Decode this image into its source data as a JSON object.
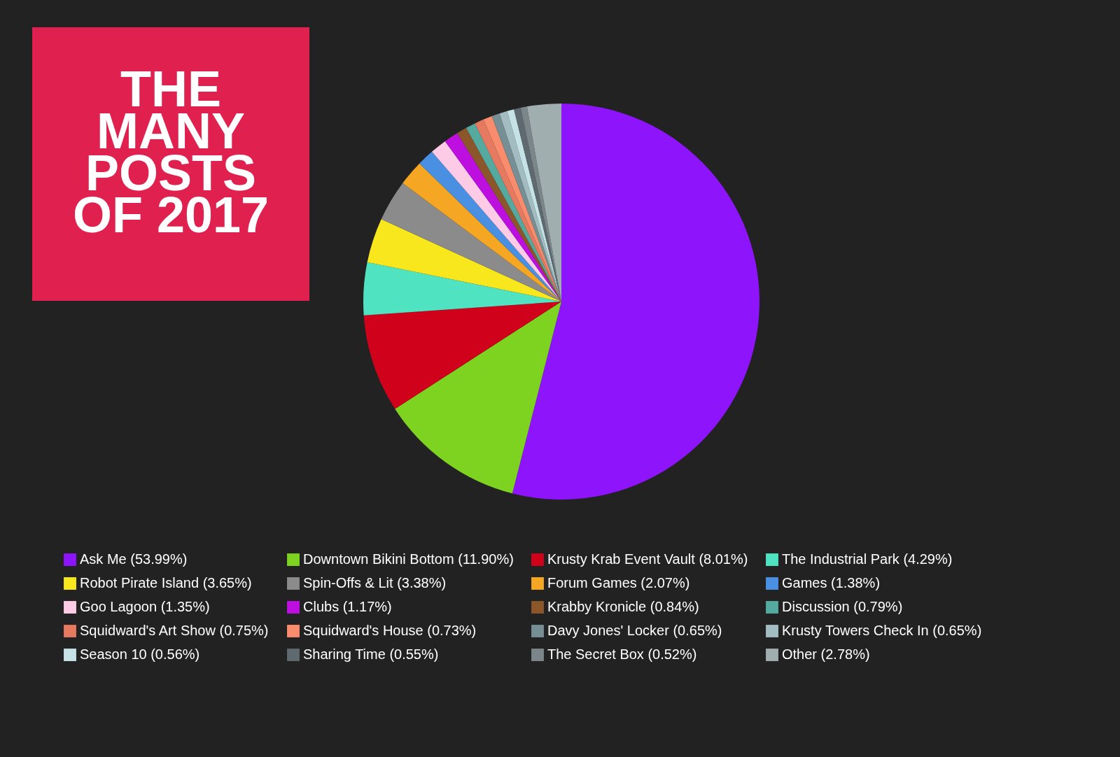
{
  "chart_data": {
    "type": "pie",
    "title": "THE MANY POSTS OF 2017",
    "categories": [
      "Ask Me (53.99%)",
      "Downtown Bikini Bottom (11.90%)",
      "Krusty Krab Event Vault (8.01%)",
      "The Industrial Park (4.29%)",
      "Robot Pirate Island (3.65%)",
      "Spin-Offs & Lit (3.38%)",
      "Forum Games (2.07%)",
      "Games (1.38%)",
      "Goo Lagoon (1.35%)",
      "Clubs (1.17%)",
      "Krabby Kronicle (0.84%)",
      "Discussion (0.79%)",
      "Squidward's Art Show (0.75%)",
      "Squidward's House (0.73%)",
      "Davy Jones' Locker (0.65%)",
      "Krusty Towers Check In (0.65%)",
      "Season 10 (0.56%)",
      "Sharing Time (0.55%)",
      "The Secret Box (0.52%)",
      "Other (2.78%)"
    ],
    "values": [
      53.99,
      11.9,
      8.01,
      4.29,
      3.65,
      3.38,
      2.07,
      1.38,
      1.35,
      1.17,
      0.84,
      0.79,
      0.75,
      0.73,
      0.65,
      0.65,
      0.56,
      0.55,
      0.52,
      2.78
    ],
    "colors": [
      "#8e14fc",
      "#7ed321",
      "#d0021b",
      "#50e3c2",
      "#f8e71c",
      "#8b8b8b",
      "#f5a623",
      "#4a90e2",
      "#fdcbe6",
      "#bd10e0",
      "#8b572a",
      "#55aaa0",
      "#e57a60",
      "#fa8c6e",
      "#758f94",
      "#a3bcc2",
      "#c5e2e6",
      "#5e6a70",
      "#7a868a",
      "#a1aeb0"
    ],
    "legend": "bottom"
  }
}
